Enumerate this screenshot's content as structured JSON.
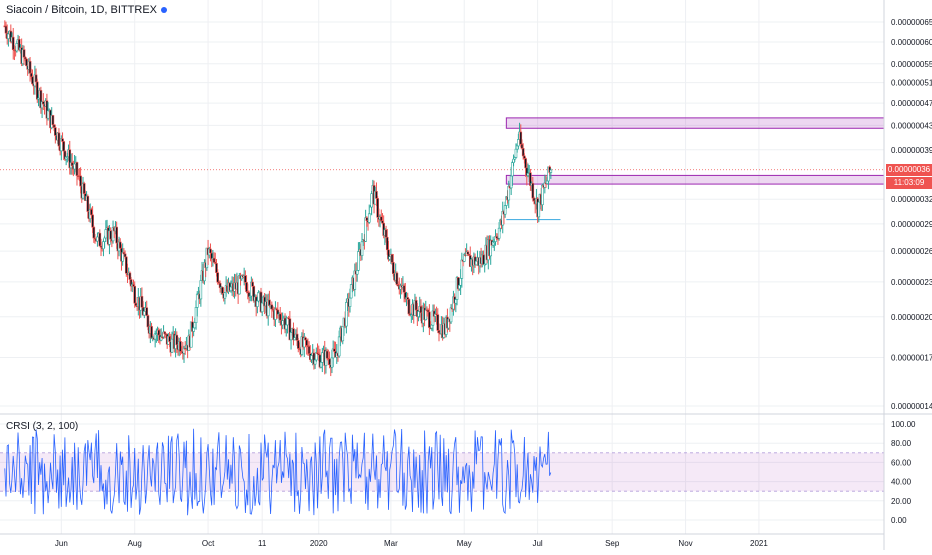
{
  "header": {
    "title": "Siacoin / Bitcoin, 1D, BITTREX",
    "indicator_title": "CRSI (3, 2, 100)"
  },
  "price_tags": {
    "last_price": "0.00000036",
    "countdown": "11:03:09",
    "last_color": "#ef5350",
    "countdown_color": "#ef5350"
  },
  "colors": {
    "up": "#26a69a",
    "down": "#ef5350",
    "up_fill": "#ffffff",
    "down_fill": "#131722",
    "zone_fill": "rgba(156,39,176,0.18)",
    "zone_stroke": "#9c27b0",
    "support_line": "#4fb2e3",
    "crsi_line": "#2962ff",
    "crsi_band": "rgba(156,39,176,0.10)",
    "grid": "#eef0f3",
    "axis_text": "#131722"
  },
  "chart_data": [
    {
      "type": "line",
      "title": "Siacoin / Bitcoin, 1D, BITTREX",
      "x_axis_labels": [
        "Jun",
        "Aug",
        "Oct",
        "11",
        "2020",
        "Mar",
        "May",
        "Jul",
        "Sep",
        "Nov",
        "2021"
      ],
      "y_axis_labels": [
        "0.00000065",
        "0.00000060",
        "0.00000055",
        "0.00000051",
        "0.00000047",
        "0.00000043",
        "0.00000039",
        "0.00000032",
        "0.00000029",
        "0.00000026",
        "0.00000023",
        "0.00000020",
        "0.00000017",
        "0.00000014"
      ],
      "ylim": [
        1.4e-07,
        6.5e-07
      ],
      "log_scale": true,
      "series": [
        {
          "style": "candles",
          "x": [
            "2019-04-15",
            "2019-05-01",
            "2019-05-15",
            "2019-06-01",
            "2019-06-15",
            "2019-07-01",
            "2019-07-15",
            "2019-08-01",
            "2019-08-15",
            "2019-09-01",
            "2019-09-15",
            "2019-10-01",
            "2019-10-15",
            "2019-11-01",
            "2019-11-15",
            "2019-12-01",
            "2019-12-15",
            "2020-01-01",
            "2020-01-15",
            "2020-02-01",
            "2020-02-15",
            "2020-03-01",
            "2020-03-15",
            "2020-04-01",
            "2020-04-15",
            "2020-05-01",
            "2020-05-15",
            "2020-06-01",
            "2020-06-15",
            "2020-07-01",
            "2020-07-12"
          ],
          "close": [
            6.4e-07,
            5.6e-07,
            4.8e-07,
            4e-07,
            3.5e-07,
            2.7e-07,
            2.8e-07,
            2.2e-07,
            1.9e-07,
            1.8e-07,
            1.8e-07,
            2.6e-07,
            2.2e-07,
            2.3e-07,
            2.1e-07,
            2e-07,
            1.8e-07,
            1.7e-07,
            1.7e-07,
            2.4e-07,
            3.3e-07,
            2.5e-07,
            2.1e-07,
            2e-07,
            1.9e-07,
            2.5e-07,
            2.5e-07,
            2.9e-07,
            4.1e-07,
            3.1e-07,
            3.6e-07
          ]
        }
      ],
      "annotations": [
        {
          "kind": "horizontal-zone",
          "from_date": "2020-06-05",
          "low": 4.25e-07,
          "high": 4.43e-07
        },
        {
          "kind": "horizontal-zone",
          "from_date": "2020-06-05",
          "low": 3.4e-07,
          "high": 3.52e-07
        },
        {
          "kind": "horizontal-ray",
          "from_date": "2020-06-05",
          "to_date": "2020-07-20",
          "value": 2.95e-07
        },
        {
          "kind": "price-line",
          "value": 3.6e-07
        }
      ],
      "grid": true
    },
    {
      "type": "line",
      "title": "CRSI (3, 2, 100)",
      "y_axis_labels": [
        "100.00",
        "80.00",
        "60.00",
        "40.00",
        "20.00",
        "0.00"
      ],
      "ylim": [
        0,
        100
      ],
      "band": [
        30,
        70
      ],
      "grid": true
    }
  ]
}
